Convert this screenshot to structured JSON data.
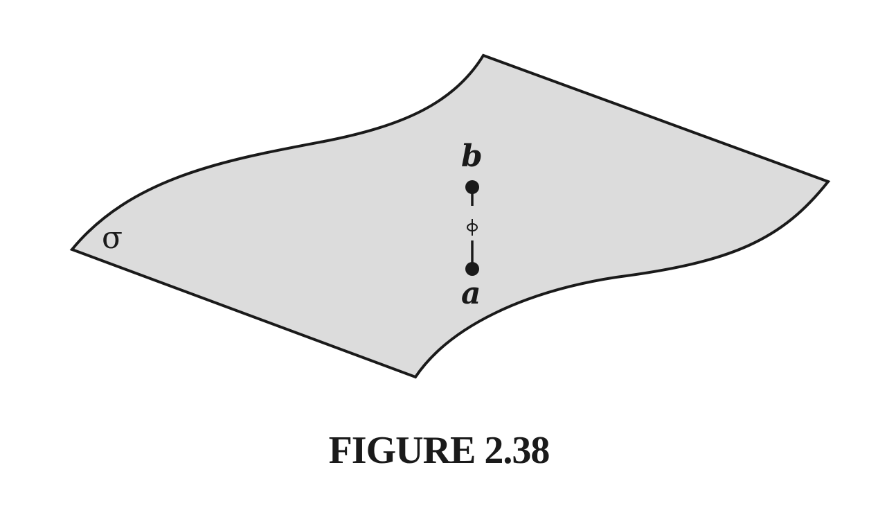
{
  "diagram": {
    "surface_label": "σ",
    "point_top_label": "b",
    "point_bottom_label": "a",
    "colors": {
      "surface_fill": "#dcdcdc",
      "stroke": "#1a1a1a"
    }
  },
  "caption": "FIGURE 2.38"
}
